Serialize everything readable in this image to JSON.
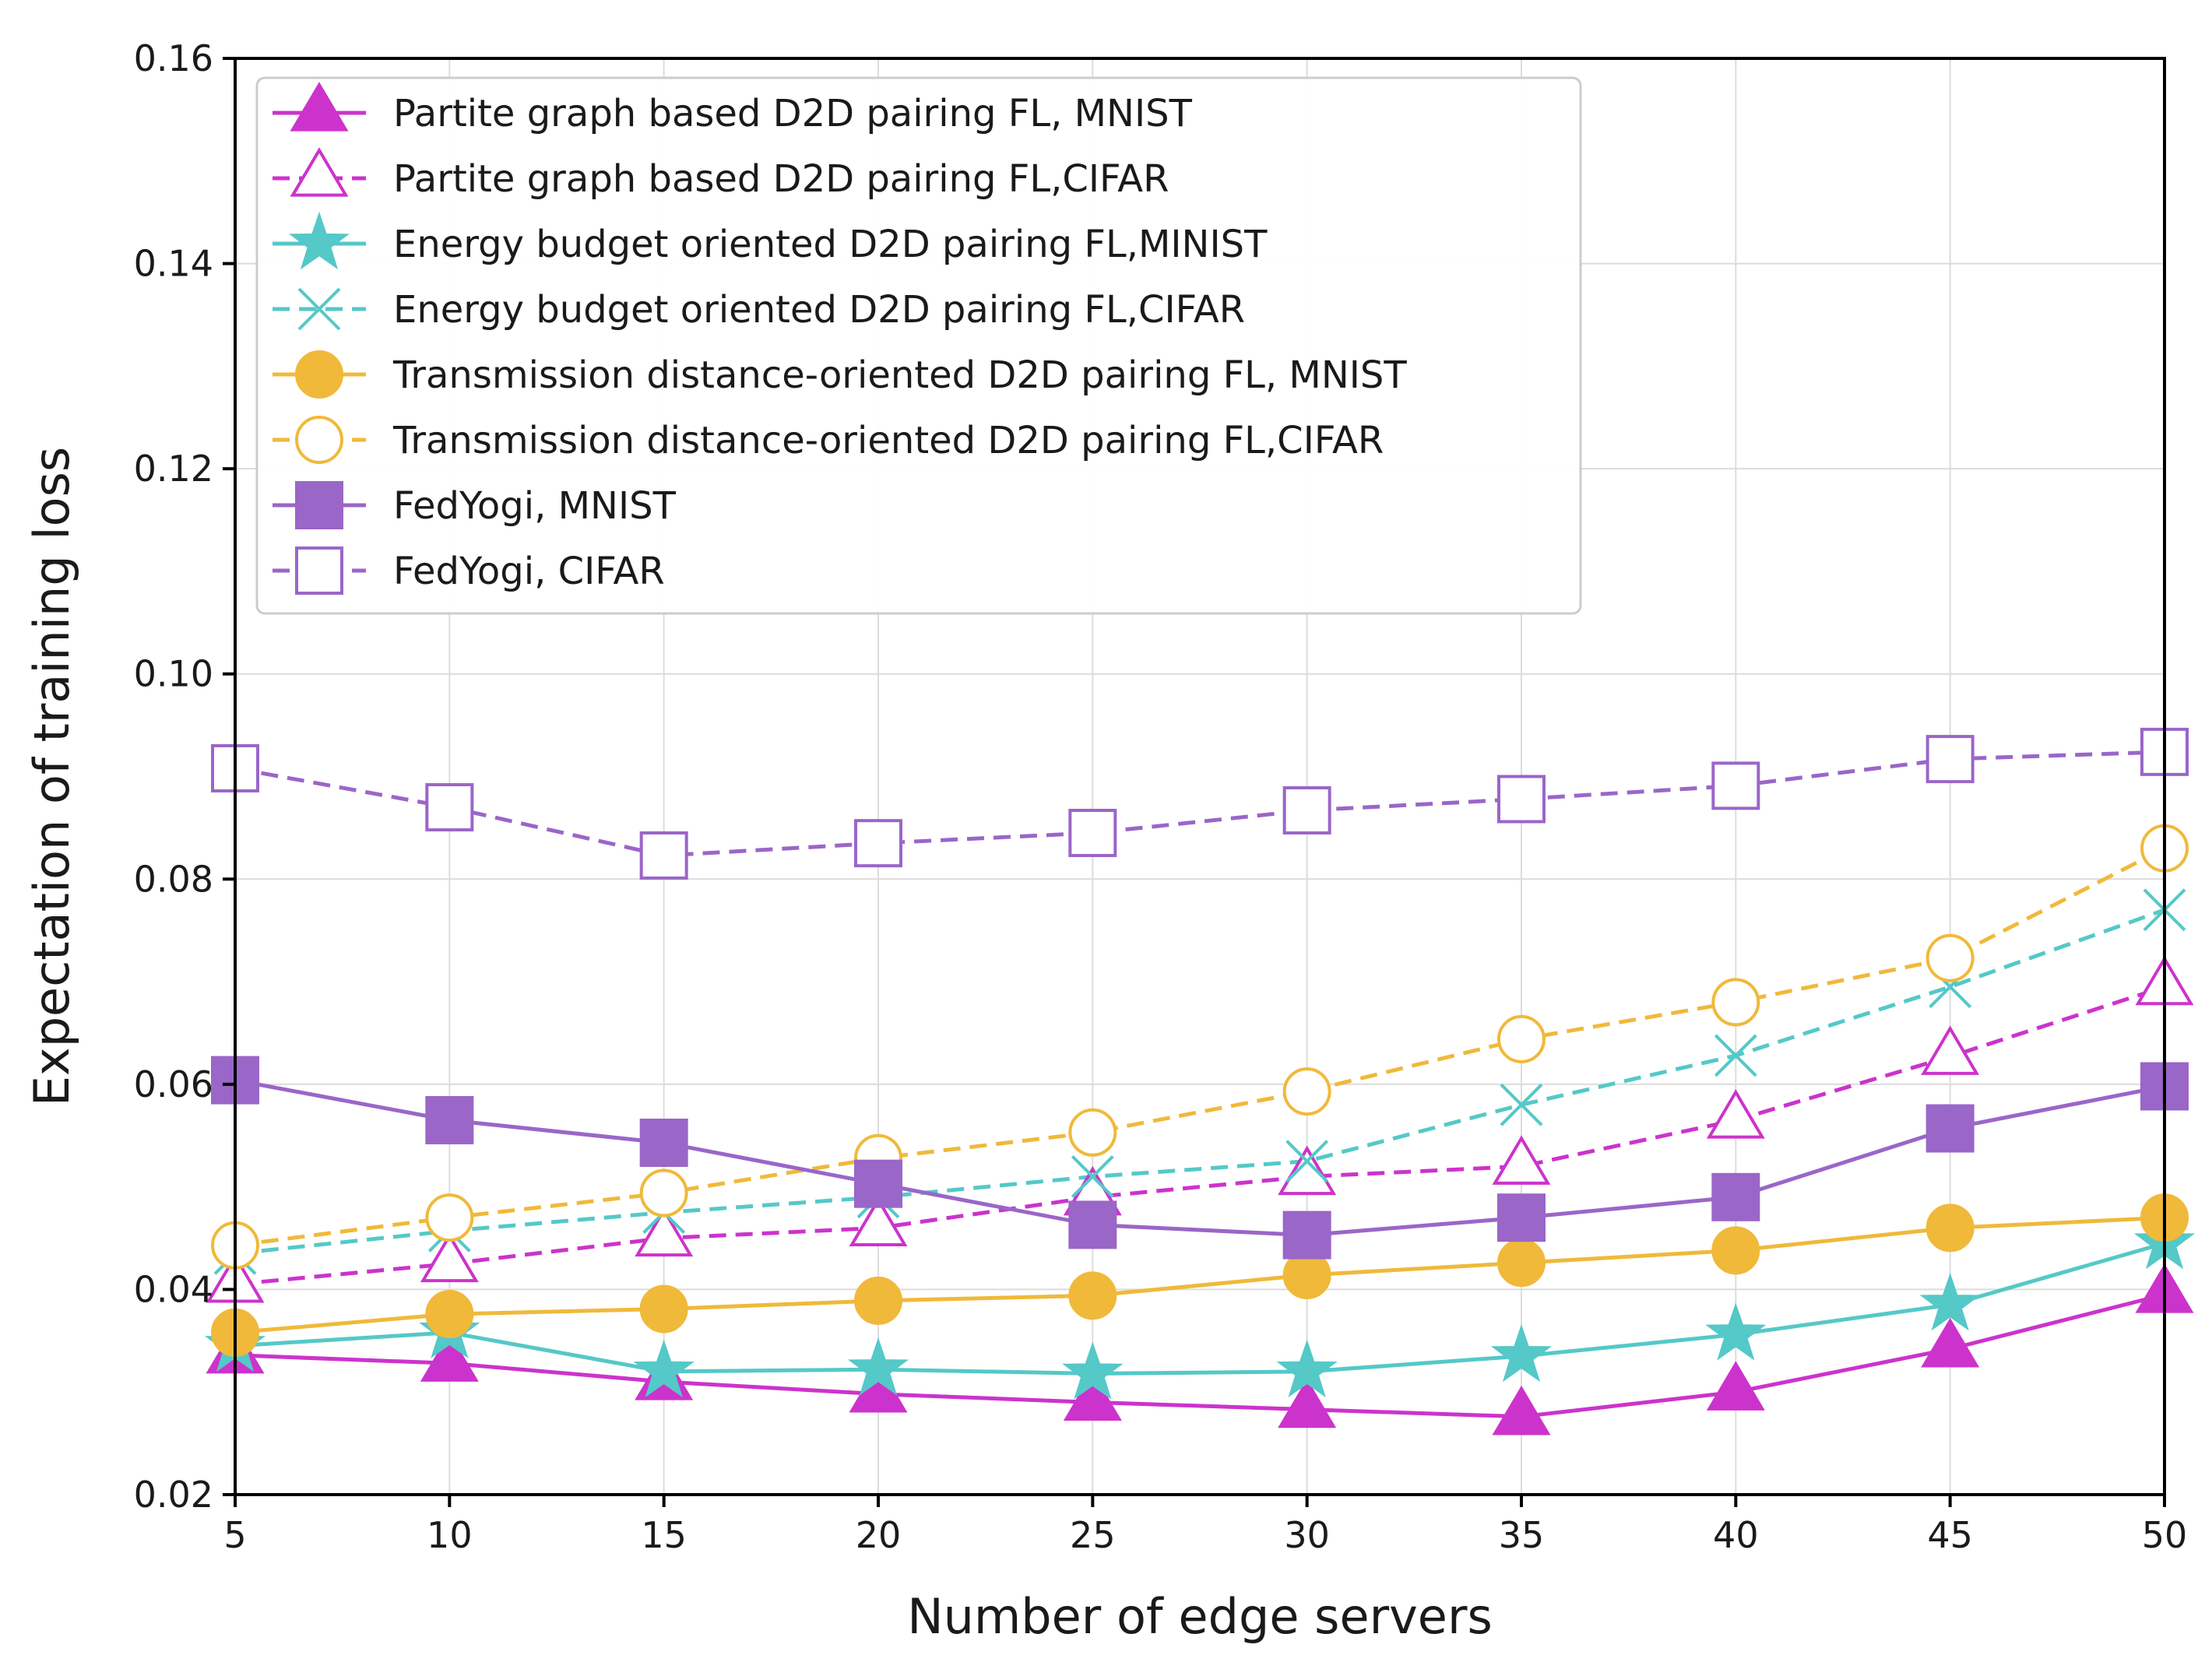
{
  "chart_data": {
    "type": "line",
    "title": "",
    "xlabel": "Number of edge servers",
    "ylabel": "Expectation of training loss",
    "x": [
      5,
      10,
      15,
      20,
      25,
      30,
      35,
      40,
      45,
      50
    ],
    "xlim": [
      5,
      50
    ],
    "ylim": [
      0.02,
      0.16
    ],
    "xticks": [
      5,
      10,
      15,
      20,
      25,
      30,
      35,
      40,
      45,
      50
    ],
    "xtick_labels": [
      "5",
      "10",
      "15",
      "20",
      "25",
      "30",
      "35",
      "40",
      "45",
      "50"
    ],
    "yticks": [
      0.02,
      0.04,
      0.06,
      0.08,
      0.1,
      0.12,
      0.14,
      0.16
    ],
    "ytick_labels": [
      "0.02",
      "0.04",
      "0.06",
      "0.08",
      "0.10",
      "0.12",
      "0.14",
      "0.16"
    ],
    "grid": true,
    "legend_position": "top-left",
    "series": [
      {
        "name": "Partite graph based D2D pairing FL, MNIST",
        "color": "#cc33cc",
        "linestyle": "solid",
        "marker": "triangle-filled",
        "values": [
          0.0336,
          0.0328,
          0.031,
          0.0298,
          0.029,
          0.0283,
          0.0276,
          0.03,
          0.0342,
          0.0395
        ]
      },
      {
        "name": "Partite graph based D2D pairing FL,CIFAR",
        "color": "#cc33cc",
        "linestyle": "dashed",
        "marker": "triangle-open",
        "values": [
          0.0405,
          0.0425,
          0.045,
          0.046,
          0.049,
          0.051,
          0.052,
          0.0565,
          0.0627,
          0.0695
        ]
      },
      {
        "name": "Energy budget oriented D2D pairing FL,MINIST",
        "color": "#55c8c8",
        "linestyle": "solid",
        "marker": "star",
        "values": [
          0.0345,
          0.0358,
          0.032,
          0.0322,
          0.0318,
          0.032,
          0.0335,
          0.0356,
          0.0385,
          0.0445
        ]
      },
      {
        "name": "Energy budget oriented D2D pairing FL,CIFAR",
        "color": "#55c8c8",
        "linestyle": "dashed",
        "marker": "x",
        "values": [
          0.0435,
          0.0457,
          0.0475,
          0.049,
          0.051,
          0.0525,
          0.058,
          0.0628,
          0.0695,
          0.077
        ]
      },
      {
        "name": "Transmission distance-oriented D2D pairing FL, MNIST",
        "color": "#f0b93a",
        "linestyle": "solid",
        "marker": "circle-filled",
        "values": [
          0.0358,
          0.0376,
          0.0381,
          0.0389,
          0.0394,
          0.0414,
          0.0426,
          0.0438,
          0.046,
          0.047
        ]
      },
      {
        "name": "Transmission distance-oriented D2D pairing FL,CIFAR",
        "color": "#f0b93a",
        "linestyle": "dashed",
        "marker": "circle-open",
        "values": [
          0.0443,
          0.047,
          0.0494,
          0.0528,
          0.0553,
          0.0593,
          0.0644,
          0.068,
          0.0723,
          0.083
        ]
      },
      {
        "name": "FedYogi, MNIST",
        "color": "#9a66c8",
        "linestyle": "solid",
        "marker": "square-filled",
        "values": [
          0.0604,
          0.0565,
          0.0543,
          0.0503,
          0.0463,
          0.0453,
          0.047,
          0.049,
          0.0557,
          0.0598
        ]
      },
      {
        "name": "FedYogi, CIFAR",
        "color": "#9a66c8",
        "linestyle": "dashed",
        "marker": "square-open",
        "values": [
          0.0908,
          0.087,
          0.0823,
          0.0835,
          0.0845,
          0.0867,
          0.0878,
          0.0891,
          0.0917,
          0.0924
        ]
      }
    ]
  }
}
